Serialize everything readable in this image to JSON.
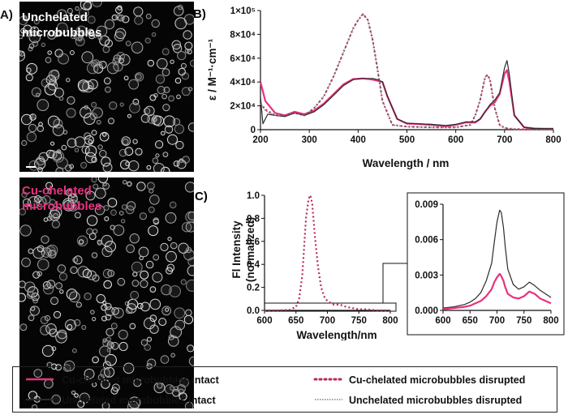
{
  "colors": {
    "pink": "#e8317f",
    "dark": "#2b2b2b",
    "maroon": "#7a1f3d",
    "grey": "#8a8a8a"
  },
  "panelA": {
    "letter": "A)",
    "top_label_line1": "Unchelated",
    "top_label_line2": "microbubbles",
    "bottom_label_line1": "Cu-chelated",
    "bottom_label_line2": "microbubbles"
  },
  "legend": {
    "items": [
      {
        "label": "Cu-chelated microbubbles intact",
        "style": "pink-solid"
      },
      {
        "label": "Cu-chelated microbubbles disrupted",
        "style": "pink-dotted"
      },
      {
        "label": "Unchelated microbubbles intact",
        "style": "dark-solid"
      },
      {
        "label": "Unchelated microbubbles disrupted",
        "style": "grey-dotted"
      }
    ]
  },
  "chart_data": [
    {
      "panel": "B)",
      "type": "line",
      "xlabel": "Wavelength / nm",
      "ylabel": "ε / M⁻¹·cm⁻¹",
      "xlim": [
        200,
        800
      ],
      "ylim": [
        0,
        100000
      ],
      "xticks": [
        "200",
        "300",
        "400",
        "500",
        "600",
        "700",
        "800"
      ],
      "yticks": [
        "0",
        "2×10⁴",
        "4×10⁴",
        "6×10⁴",
        "8×10⁴",
        "1×10⁵"
      ],
      "series": [
        {
          "name": "Cu-chelated microbubbles intact",
          "style": "pink-solid",
          "x": [
            200,
            210,
            230,
            250,
            270,
            290,
            310,
            330,
            350,
            370,
            390,
            410,
            430,
            440,
            450,
            460,
            480,
            500,
            520,
            550,
            580,
            600,
            620,
            640,
            650,
            660,
            670,
            680,
            690,
            700,
            705,
            710,
            720,
            740,
            760,
            780,
            800
          ],
          "y": [
            40000,
            24000,
            14000,
            12000,
            15000,
            13000,
            16000,
            22000,
            30000,
            38000,
            42500,
            43000,
            42000,
            41000,
            40000,
            28000,
            9000,
            5000,
            4800,
            4000,
            3000,
            4000,
            6000,
            6000,
            9000,
            15000,
            20000,
            23000,
            30000,
            47000,
            50000,
            40000,
            12000,
            2000,
            1000,
            800,
            800
          ]
        },
        {
          "name": "Cu-chelated microbubbles disrupted",
          "style": "pink-dotted",
          "x": [
            200,
            210,
            230,
            250,
            270,
            290,
            310,
            330,
            350,
            370,
            390,
            400,
            410,
            420,
            430,
            440,
            450,
            470,
            500,
            550,
            600,
            630,
            640,
            650,
            660,
            665,
            670,
            680,
            690,
            700,
            710,
            720,
            740,
            760,
            800
          ],
          "y": [
            22000,
            17000,
            12000,
            12000,
            14000,
            12000,
            18000,
            28000,
            45000,
            65000,
            85000,
            92000,
            97000,
            92000,
            75000,
            50000,
            24000,
            4000,
            2500,
            2000,
            2000,
            4000,
            12000,
            25000,
            44000,
            46000,
            42000,
            18000,
            4000,
            1500,
            800,
            500,
            300,
            200,
            100
          ]
        },
        {
          "name": "Unchelated microbubbles intact",
          "style": "dark-solid",
          "x": [
            200,
            205,
            215,
            230,
            250,
            270,
            290,
            310,
            330,
            350,
            370,
            390,
            410,
            430,
            440,
            450,
            460,
            480,
            500,
            520,
            550,
            580,
            600,
            620,
            640,
            650,
            660,
            670,
            680,
            690,
            700,
            705,
            710,
            720,
            740,
            760,
            800
          ],
          "y": [
            28000,
            5000,
            13000,
            12000,
            11000,
            14000,
            12000,
            15000,
            21000,
            29000,
            37000,
            42000,
            43000,
            43000,
            42000,
            40000,
            28000,
            9000,
            5500,
            5000,
            4500,
            3500,
            4500,
            6500,
            6500,
            9000,
            15000,
            21000,
            25000,
            31000,
            52000,
            58000,
            46000,
            12000,
            2000,
            1000,
            800
          ]
        },
        {
          "name": "Unchelated microbubbles disrupted",
          "style": "grey-dotted",
          "x": [
            200,
            210,
            230,
            250,
            270,
            290,
            310,
            330,
            350,
            370,
            390,
            400,
            410,
            420,
            430,
            440,
            450,
            470,
            500,
            550,
            600,
            630,
            640,
            650,
            660,
            665,
            670,
            680,
            690,
            700,
            710,
            720,
            740,
            760,
            800
          ],
          "y": [
            22000,
            16000,
            12000,
            12000,
            14000,
            12000,
            18000,
            28000,
            45000,
            65000,
            85000,
            92000,
            97500,
            92000,
            75000,
            50000,
            24000,
            4000,
            2500,
            2000,
            2000,
            4000,
            12000,
            25000,
            44000,
            46000,
            42000,
            18000,
            4000,
            1500,
            800,
            500,
            300,
            200,
            100
          ]
        }
      ]
    },
    {
      "panel": "C)",
      "type": "line",
      "xlabel": "Wavelength/nm",
      "ylabel_line1": "Fl Intensity",
      "ylabel_line2": "(normalized)",
      "xlim": [
        600,
        800
      ],
      "ylim": [
        0,
        1.0
      ],
      "xticks": [
        "600",
        "650",
        "700",
        "750",
        "800"
      ],
      "yticks": [
        "0.0",
        "0.2",
        "0.4",
        "0.6",
        "0.8",
        "1.0"
      ],
      "series": [
        {
          "name": "Cu-chelated microbubbles disrupted",
          "style": "pink-dotted",
          "x": [
            600,
            620,
            640,
            650,
            655,
            660,
            663,
            666,
            670,
            673,
            676,
            680,
            685,
            690,
            695,
            700,
            710,
            720,
            730,
            740,
            750,
            760,
            780,
            800
          ],
          "y": [
            0,
            0,
            0.005,
            0.03,
            0.1,
            0.3,
            0.55,
            0.8,
            0.97,
            1.0,
            0.92,
            0.65,
            0.38,
            0.2,
            0.12,
            0.08,
            0.05,
            0.05,
            0.03,
            0.02,
            0.01,
            0.01,
            0,
            0
          ]
        }
      ]
    },
    {
      "panel": "C inset",
      "type": "line",
      "xlim": [
        600,
        800
      ],
      "ylim": [
        0,
        0.009
      ],
      "xticks": [
        "600",
        "650",
        "700",
        "750",
        "800"
      ],
      "yticks": [
        "0.000",
        "0.003",
        "0.006",
        "0.009"
      ],
      "series": [
        {
          "name": "Unchelated microbubbles intact",
          "style": "dark-solid",
          "x": [
            600,
            620,
            640,
            650,
            660,
            670,
            680,
            690,
            695,
            700,
            705,
            708,
            712,
            715,
            720,
            730,
            740,
            750,
            760,
            770,
            780,
            790,
            800
          ],
          "y": [
            0.0002,
            0.0003,
            0.0005,
            0.0007,
            0.001,
            0.0015,
            0.0025,
            0.004,
            0.0058,
            0.0075,
            0.0085,
            0.0083,
            0.007,
            0.0055,
            0.0035,
            0.0022,
            0.0018,
            0.002,
            0.0024,
            0.0021,
            0.0017,
            0.0014,
            0.0011
          ]
        },
        {
          "name": "Cu-chelated microbubbles intact",
          "style": "pink-solid",
          "x": [
            600,
            620,
            640,
            650,
            660,
            670,
            680,
            690,
            695,
            700,
            705,
            708,
            712,
            715,
            720,
            730,
            740,
            750,
            760,
            770,
            780,
            790,
            800
          ],
          "y": [
            0.0001,
            0.0002,
            0.0003,
            0.0004,
            0.0006,
            0.0008,
            0.0012,
            0.0018,
            0.0024,
            0.0028,
            0.0031,
            0.0029,
            0.0025,
            0.002,
            0.0014,
            0.0011,
            0.001,
            0.0012,
            0.0016,
            0.0014,
            0.001,
            0.0008,
            0.0006
          ]
        }
      ]
    }
  ]
}
